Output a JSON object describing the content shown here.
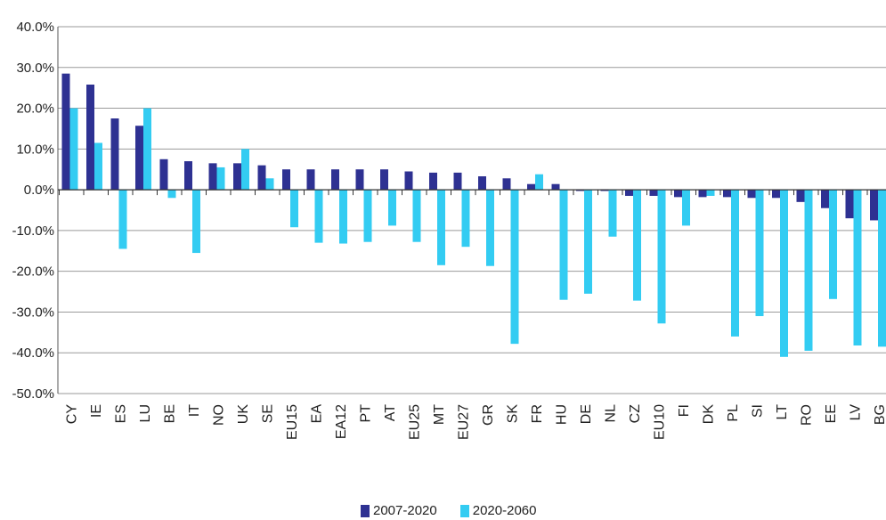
{
  "chart_data": {
    "type": "bar",
    "categories": [
      "CY",
      "IE",
      "ES",
      "LU",
      "BE",
      "IT",
      "NO",
      "UK",
      "SE",
      "EU15",
      "EA",
      "EA12",
      "PT",
      "AT",
      "EU25",
      "MT",
      "EU27",
      "GR",
      "SK",
      "FR",
      "HU",
      "DE",
      "NL",
      "CZ",
      "EU10",
      "FI",
      "DK",
      "PL",
      "SI",
      "LT",
      "RO",
      "EE",
      "LV",
      "BG"
    ],
    "series": [
      {
        "name": "2007-2020",
        "color": "#2e3192",
        "values": [
          28.5,
          25.8,
          17.5,
          15.7,
          7.5,
          7.0,
          6.5,
          6.5,
          6.0,
          5.0,
          5.0,
          5.0,
          5.0,
          5.0,
          4.5,
          4.2,
          4.2,
          3.3,
          2.8,
          1.4,
          1.4,
          -0.3,
          -0.3,
          -1.5,
          -1.5,
          -1.8,
          -1.8,
          -1.8,
          -2.0,
          -2.0,
          -3.0,
          -4.5,
          -7.0,
          -7.5
        ]
      },
      {
        "name": "2020-2060",
        "color": "#33ccf2",
        "values": [
          20.0,
          11.5,
          -14.5,
          20.0,
          -2.0,
          -15.5,
          5.5,
          10.0,
          2.8,
          -9.2,
          -13.0,
          -13.2,
          -12.8,
          -8.8,
          -12.8,
          -18.5,
          -14.0,
          -18.7,
          -37.8,
          3.8,
          -27.0,
          -25.5,
          -11.5,
          -27.2,
          -32.8,
          -8.8,
          -1.5,
          -36.0,
          -31.0,
          -41.0,
          -39.5,
          -26.8,
          -38.2,
          -38.5
        ]
      }
    ],
    "ylim": [
      -50,
      40
    ],
    "yticks": [
      40,
      30,
      20,
      10,
      0,
      -10,
      -20,
      -30,
      -40,
      -50
    ],
    "ytick_labels": [
      "40.0%",
      "30.0%",
      "20.0%",
      "10.0%",
      "0.0%",
      "-10.0%",
      "-20.0%",
      "-30.0%",
      "-40.0%",
      "-50.0%"
    ],
    "grid": true,
    "legend_position": "bottom-center"
  },
  "legend": {
    "items": [
      {
        "label": "2007-2020",
        "color": "#2e3192"
      },
      {
        "label": "2020-2060",
        "color": "#33ccf2"
      }
    ]
  }
}
